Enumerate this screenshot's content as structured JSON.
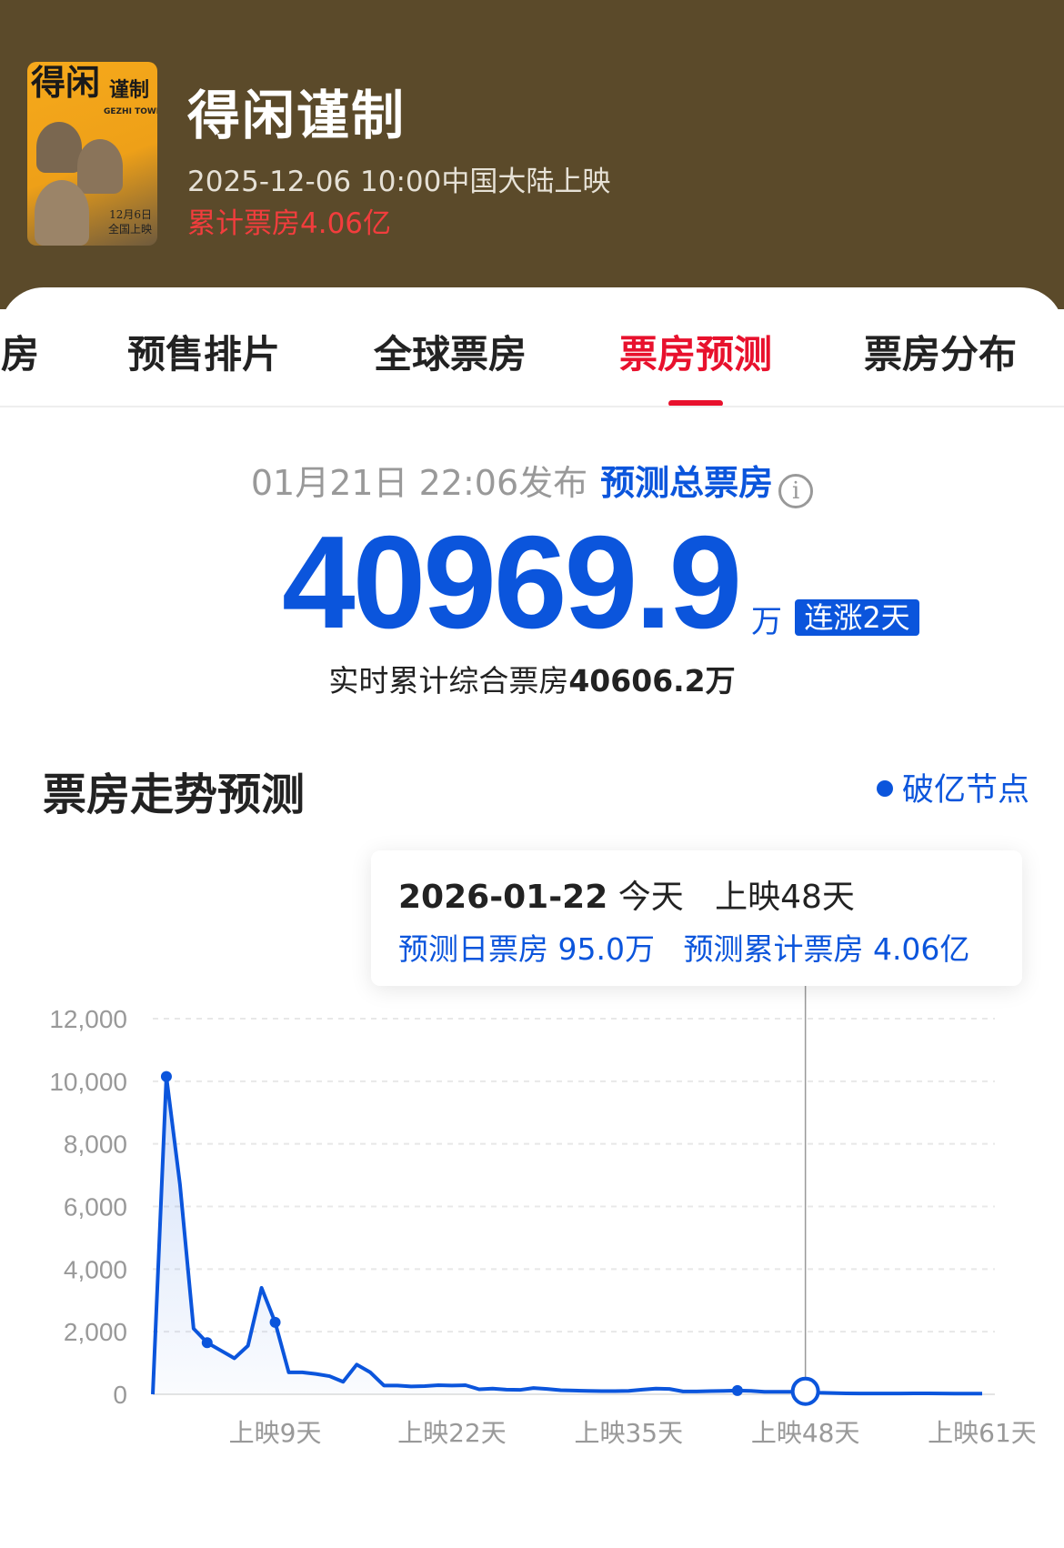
{
  "movie": {
    "title": "得闲谨制",
    "release": "2025-12-06 10:00中国大陆上映",
    "cumulative": "累计票房4.06亿",
    "poster_text": {
      "title_big": "得闲",
      "title_small": "谨制",
      "english": "GEZHI TOWN",
      "date": "12月6日",
      "release": "全国上映"
    }
  },
  "tabs": [
    {
      "label": "房"
    },
    {
      "label": "预售排片"
    },
    {
      "label": "全球票房"
    },
    {
      "label": "票房预测",
      "active": true
    },
    {
      "label": "票房分布"
    }
  ],
  "forecast": {
    "published": "01月21日 22:06发布",
    "label": "预测总票房",
    "value": "40969.9",
    "unit": "万",
    "badge": "连涨2天",
    "realtime_label": "实时累计综合票房",
    "realtime_value": "40606.2万"
  },
  "section": {
    "title": "票房走势预测",
    "legend": "破亿节点"
  },
  "tooltip": {
    "date": "2026-01-22",
    "today": "今天",
    "days": "上映48天",
    "daily": "预测日票房 95.0万",
    "cumulative": "预测累计票房 4.06亿"
  },
  "colors": {
    "accent": "#0b55dc",
    "tab_active": "#e8112d",
    "header_bg": "#5b4a2a",
    "cum_red": "#f23d3d"
  },
  "chart_data": {
    "type": "area",
    "ylim": [
      0,
      12000
    ],
    "y_ticks": [
      "12,000",
      "10,000",
      "8,000",
      "6,000",
      "4,000",
      "2,000",
      "0"
    ],
    "y_tick_values": [
      12000,
      10000,
      8000,
      6000,
      4000,
      2000,
      0
    ],
    "x_ticks": [
      "上映9天",
      "上映22天",
      "上映35天",
      "上映48天",
      "上映61天"
    ],
    "x_tick_values": [
      9,
      22,
      35,
      48,
      61
    ],
    "grid": true,
    "x": [
      0,
      1,
      2,
      3,
      4,
      5,
      6,
      7,
      8,
      9,
      10,
      11,
      12,
      13,
      14,
      15,
      16,
      17,
      18,
      19,
      20,
      21,
      22,
      23,
      24,
      25,
      26,
      27,
      28,
      29,
      30,
      31,
      32,
      33,
      34,
      35,
      36,
      37,
      38,
      39,
      40,
      41,
      42,
      43,
      44,
      45,
      46,
      47,
      48,
      49,
      50,
      51,
      52,
      53,
      54,
      55,
      56,
      57,
      58,
      59,
      60,
      61
    ],
    "values": [
      0,
      10150,
      6700,
      2100,
      1650,
      1400,
      1150,
      1550,
      3400,
      2300,
      700,
      700,
      650,
      580,
      400,
      950,
      700,
      280,
      280,
      250,
      260,
      290,
      280,
      290,
      160,
      180,
      150,
      140,
      200,
      170,
      130,
      120,
      110,
      100,
      100,
      110,
      150,
      180,
      170,
      90,
      90,
      100,
      110,
      120,
      110,
      80,
      80,
      80,
      95,
      50,
      40,
      30,
      25,
      25,
      25,
      25,
      30,
      30,
      25,
      20,
      20,
      20
    ],
    "markers": [
      1,
      4,
      9,
      43
    ],
    "highlight": 48
  }
}
